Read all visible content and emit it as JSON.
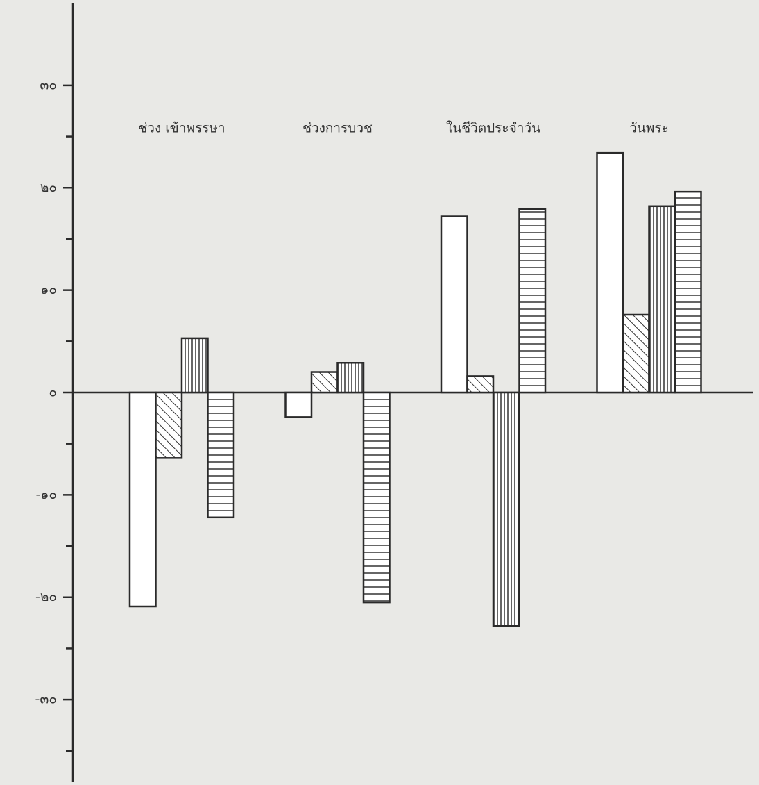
{
  "chart_data": {
    "type": "bar",
    "categories": [
      "ช่วง เข้าพรรษา",
      "ช่วงการบวช",
      "ในชีวิตประจำวัน",
      "วันพระ"
    ],
    "series": [
      {
        "pattern": "none",
        "color": "#ffffff",
        "values": [
          -20.9,
          -2.4,
          17.2,
          23.4
        ]
      },
      {
        "pattern": "diagonal",
        "color": "#ffffff",
        "values": [
          -6.4,
          2.0,
          1.6,
          7.6
        ]
      },
      {
        "pattern": "vertical",
        "color": "#ffffff",
        "values": [
          5.3,
          2.9,
          -22.8,
          18.2
        ]
      },
      {
        "pattern": "horizontal",
        "color": "#ffffff",
        "values": [
          -12.2,
          -20.5,
          17.9,
          19.6
        ]
      }
    ],
    "ylim": [
      -38,
      38
    ],
    "yticks": [
      {
        "value": 30,
        "label": "๓๐"
      },
      {
        "value": 20,
        "label": "๒๐"
      },
      {
        "value": 10,
        "label": "๑๐"
      },
      {
        "value": 0,
        "label": "๐"
      },
      {
        "value": -10,
        "label": "-๑๐"
      },
      {
        "value": -20,
        "label": "-๒๐"
      },
      {
        "value": -30,
        "label": "-๓๐"
      }
    ],
    "yticks_minor": [
      25,
      15,
      5,
      -5,
      -15,
      -25,
      -35
    ]
  }
}
